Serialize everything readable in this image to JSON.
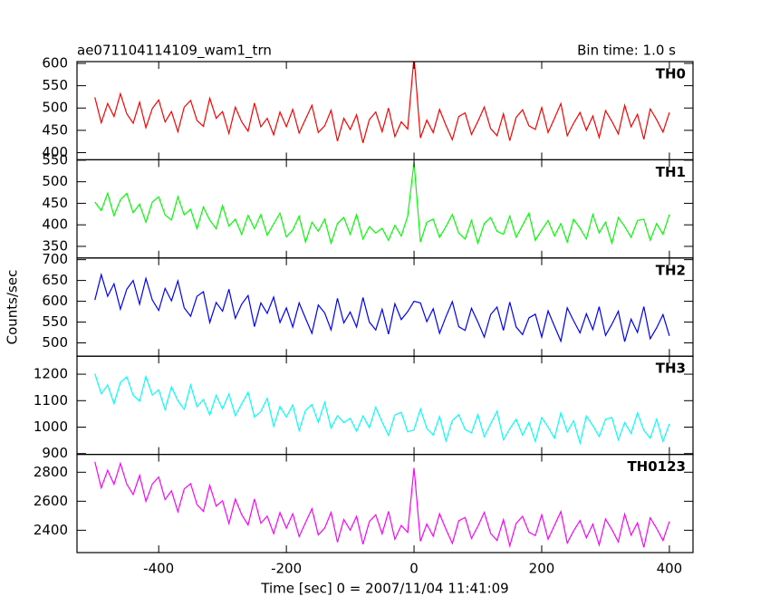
{
  "chart_data": {
    "type": "line",
    "title": "ae071104114109_wam1_trn",
    "subtitle": "Bin time: 1.0 s",
    "x_label": "Time [sec] 0 = 2007/11/04 11:41:09",
    "y_label": "Counts/sec",
    "xlim": [
      -528,
      437
    ],
    "xticks": [
      -400,
      -200,
      0,
      200,
      400
    ],
    "x": [
      -500,
      -490,
      -480,
      -470,
      -460,
      -450,
      -440,
      -430,
      -420,
      -410,
      -400,
      -390,
      -380,
      -370,
      -360,
      -350,
      -340,
      -330,
      -320,
      -310,
      -300,
      -290,
      -280,
      -270,
      -260,
      -250,
      -240,
      -230,
      -220,
      -210,
      -200,
      -190,
      -180,
      -170,
      -160,
      -150,
      -140,
      -130,
      -120,
      -110,
      -100,
      -90,
      -80,
      -70,
      -60,
      -50,
      -40,
      -30,
      -20,
      -10,
      0,
      10,
      20,
      30,
      40,
      50,
      60,
      70,
      80,
      90,
      100,
      110,
      120,
      130,
      140,
      150,
      160,
      170,
      180,
      190,
      200,
      210,
      220,
      230,
      240,
      250,
      260,
      270,
      280,
      290,
      300,
      310,
      320,
      330,
      340,
      350,
      360,
      370,
      380,
      390,
      400
    ],
    "panels": [
      {
        "name": "TH0",
        "color": "#ff0000",
        "ylim": [
          384,
          604
        ],
        "yticks": [
          400,
          450,
          500,
          550,
          600
        ],
        "values": [
          524,
          467,
          510,
          481,
          532,
          487,
          466,
          513,
          456,
          499,
          518,
          469,
          492,
          447,
          502,
          517,
          472,
          459,
          522,
          477,
          492,
          443,
          502,
          469,
          448,
          511,
          458,
          477,
          440,
          491,
          458,
          497,
          444,
          475,
          506,
          445,
          460,
          495,
          426,
          477,
          452,
          485,
          422,
          474,
          491,
          447,
          500,
          436,
          469,
          453,
          615,
          433,
          473,
          445,
          497,
          461,
          429,
          481,
          489,
          441,
          470,
          502,
          454,
          438,
          487,
          427,
          479,
          496,
          460,
          452,
          501,
          445,
          477,
          510,
          438,
          466,
          490,
          450,
          482,
          434,
          494,
          470,
          442,
          506,
          458,
          486,
          430,
          498,
          474,
          446,
          490
        ]
      },
      {
        "name": "TH1",
        "color": "#00ff00",
        "ylim": [
          323,
          551
        ],
        "yticks": [
          350,
          400,
          450,
          500,
          550
        ],
        "values": [
          453,
          433,
          473,
          421,
          458,
          473,
          428,
          448,
          406,
          453,
          465,
          423,
          411,
          465,
          423,
          436,
          391,
          441,
          411,
          391,
          445,
          397,
          413,
          378,
          422,
          391,
          424,
          376,
          402,
          427,
          372,
          388,
          420,
          360,
          406,
          385,
          413,
          357,
          403,
          417,
          378,
          424,
          367,
          396,
          381,
          392,
          364,
          399,
          374,
          420,
          545,
          360,
          406,
          413,
          371,
          396,
          424,
          381,
          367,
          410,
          357,
          403,
          417,
          385,
          378,
          420,
          371,
          399,
          427,
          364,
          388,
          410,
          374,
          403,
          360,
          413,
          392,
          367,
          424,
          381,
          406,
          357,
          417,
          396,
          371,
          410,
          413,
          364,
          403,
          378,
          424
        ]
      },
      {
        "name": "TH2",
        "color": "#0000ff",
        "ylim": [
          468,
          704
        ],
        "yticks": [
          500,
          550,
          600,
          650,
          700
        ],
        "values": [
          603,
          664,
          612,
          642,
          581,
          629,
          650,
          593,
          655,
          603,
          578,
          631,
          601,
          649,
          584,
          564,
          612,
          623,
          549,
          597,
          576,
          629,
          559,
          593,
          614,
          539,
          596,
          571,
          610,
          549,
          584,
          538,
          596,
          559,
          523,
          591,
          572,
          531,
          607,
          548,
          574,
          538,
          609,
          550,
          531,
          581,
          521,
          594,
          556,
          575,
          600,
          596,
          551,
          582,
          523,
          563,
          599,
          539,
          530,
          583,
          550,
          514,
          568,
          586,
          530,
          598,
          538,
          520,
          560,
          569,
          514,
          577,
          540,
          504,
          584,
          553,
          524,
          570,
          532,
          587,
          518,
          545,
          576,
          503,
          557,
          525,
          587,
          510,
          536,
          568,
          517
        ]
      },
      {
        "name": "TH3",
        "color": "#00ffff",
        "ylim": [
          897,
          1268
        ],
        "yticks": [
          900,
          1000,
          1100,
          1200
        ],
        "values": [
          1202,
          1126,
          1159,
          1089,
          1169,
          1190,
          1120,
          1098,
          1191,
          1121,
          1141,
          1066,
          1152,
          1100,
          1067,
          1159,
          1077,
          1104,
          1046,
          1120,
          1069,
          1125,
          1043,
          1088,
          1132,
          1038,
          1059,
          1109,
          1003,
          1078,
          1038,
          1084,
          987,
          1063,
          1085,
          1018,
          1094,
          996,
          1043,
          1017,
          1033,
          984,
          1042,
          998,
          1075,
          1019,
          969,
          1046,
          1056,
          982,
          990,
          1069,
          995,
          970,
          1040,
          948,
          1025,
          1047,
          991,
          978,
          1048,
          964,
          1012,
          1060,
          952,
          994,
          1030,
          970,
          1018,
          946,
          1036,
          1000,
          958,
          1054,
          982,
          1024,
          940,
          1042,
          1006,
          964,
          1030,
          1036,
          952,
          1018,
          976,
          1054,
          988,
          958,
          1030,
          946,
          1012
        ]
      },
      {
        "name": "TH0123",
        "color": "#ff00ff",
        "ylim": [
          2246,
          2923
        ],
        "yticks": [
          2400,
          2600,
          2800
        ],
        "values": [
          2872,
          2692,
          2813,
          2717,
          2861,
          2718,
          2646,
          2778,
          2599,
          2719,
          2767,
          2612,
          2672,
          2528,
          2685,
          2721,
          2577,
          2530,
          2710,
          2566,
          2603,
          2447,
          2615,
          2508,
          2436,
          2616,
          2449,
          2497,
          2377,
          2522,
          2414,
          2514,
          2357,
          2453,
          2548,
          2368,
          2415,
          2523,
          2318,
          2474,
          2401,
          2497,
          2304,
          2460,
          2507,
          2375,
          2530,
          2338,
          2433,
          2385,
          2830,
          2324,
          2443,
          2359,
          2514,
          2406,
          2309,
          2465,
          2488,
          2344,
          2427,
          2523,
          2378,
          2330,
          2473,
          2293,
          2448,
          2496,
          2387,
          2363,
          2506,
          2338,
          2433,
          2529,
          2312,
          2396,
          2467,
          2347,
          2442,
          2298,
          2477,
          2405,
          2320,
          2512,
          2367,
          2451,
          2282,
          2486,
          2413,
          2329,
          2460
        ]
      }
    ]
  }
}
